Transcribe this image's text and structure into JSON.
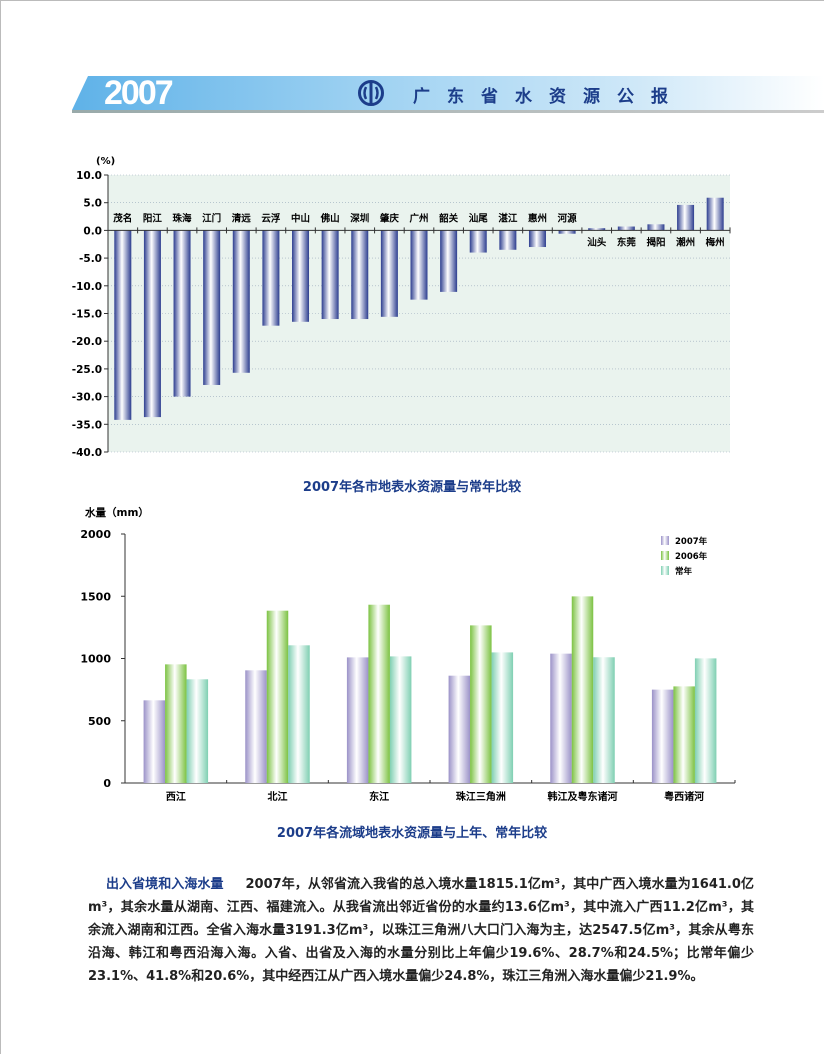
{
  "header": {
    "year": "2007",
    "title": "广东省水资源公报",
    "logo": "water-resources-emblem"
  },
  "colors": {
    "bar_city": "#2c3d8f",
    "plot_bg": "#eaf3ee",
    "series_2007": "#9b92c8",
    "series_2006": "#7cc242",
    "series_normal": "#7fcfb2",
    "caption": "#1c3d8a"
  },
  "chart_data": [
    {
      "type": "bar",
      "title": "2007年各市地表水资源量与常年比较",
      "ylabel": "(%)",
      "ylim": [
        -40,
        10
      ],
      "yticks": [
        "10.0",
        "5.0",
        "0.0",
        "-5.0",
        "-10.0",
        "-15.0",
        "-20.0",
        "-25.0",
        "-30.0",
        "-35.0",
        "-40.0"
      ],
      "grid": true,
      "categories": [
        "茂名",
        "阳江",
        "珠海",
        "江门",
        "清远",
        "云浮",
        "中山",
        "佛山",
        "深圳",
        "肇庆",
        "广州",
        "韶关",
        "汕尾",
        "湛江",
        "惠州",
        "河源",
        "汕头",
        "东莞",
        "揭阳",
        "潮州",
        "梅州"
      ],
      "values": [
        -34.2,
        -33.7,
        -30.0,
        -27.9,
        -25.7,
        -17.2,
        -16.5,
        -16.0,
        -16.0,
        -15.6,
        -12.5,
        -11.1,
        -4.0,
        -3.5,
        -3.0,
        -0.6,
        0.4,
        0.7,
        1.1,
        4.6,
        5.9
      ]
    },
    {
      "type": "bar",
      "title": "2007年各流域地表水资源量与上年、常年比较",
      "ylabel": "水量（mm）",
      "ylim": [
        0,
        2000
      ],
      "yticks": [
        "2000",
        "1500",
        "1000",
        "500",
        "0"
      ],
      "grid": false,
      "legend": "top-right",
      "categories": [
        "西江",
        "北江",
        "东江",
        "珠江三角洲",
        "韩江及粤东诸河",
        "粤西诸河"
      ],
      "series": [
        {
          "name": "2007年",
          "values": [
            664,
            905,
            1009,
            862,
            1039,
            750
          ]
        },
        {
          "name": "2006年",
          "values": [
            953,
            1384,
            1432,
            1266,
            1499,
            776
          ]
        },
        {
          "name": "常年",
          "values": [
            833,
            1106,
            1017,
            1049,
            1010,
            1001
          ]
        }
      ]
    }
  ],
  "paragraph": {
    "heading": "出入省境和入海水量",
    "body": "2007年，从邻省流入我省的总入境水量1815.1亿m³，其中广西入境水量为1641.0亿m³，其余水量从湖南、江西、福建流入。从我省流出邻近省份的水量约13.6亿m³，其中流入广西11.2亿m³，其余流入湖南和江西。全省入海水量3191.3亿m³，以珠江三角洲八大口门入海为主，达2547.5亿m³，其余从粤东沿海、韩江和粤西沿海入海。入省、出省及入海的水量分别比上年偏少19.6%、28.7%和24.5%；比常年偏少23.1%、41.8%和20.6%，其中经西江从广西入境水量偏少24.8%，珠江三角洲入海水量偏少21.9%。"
  }
}
